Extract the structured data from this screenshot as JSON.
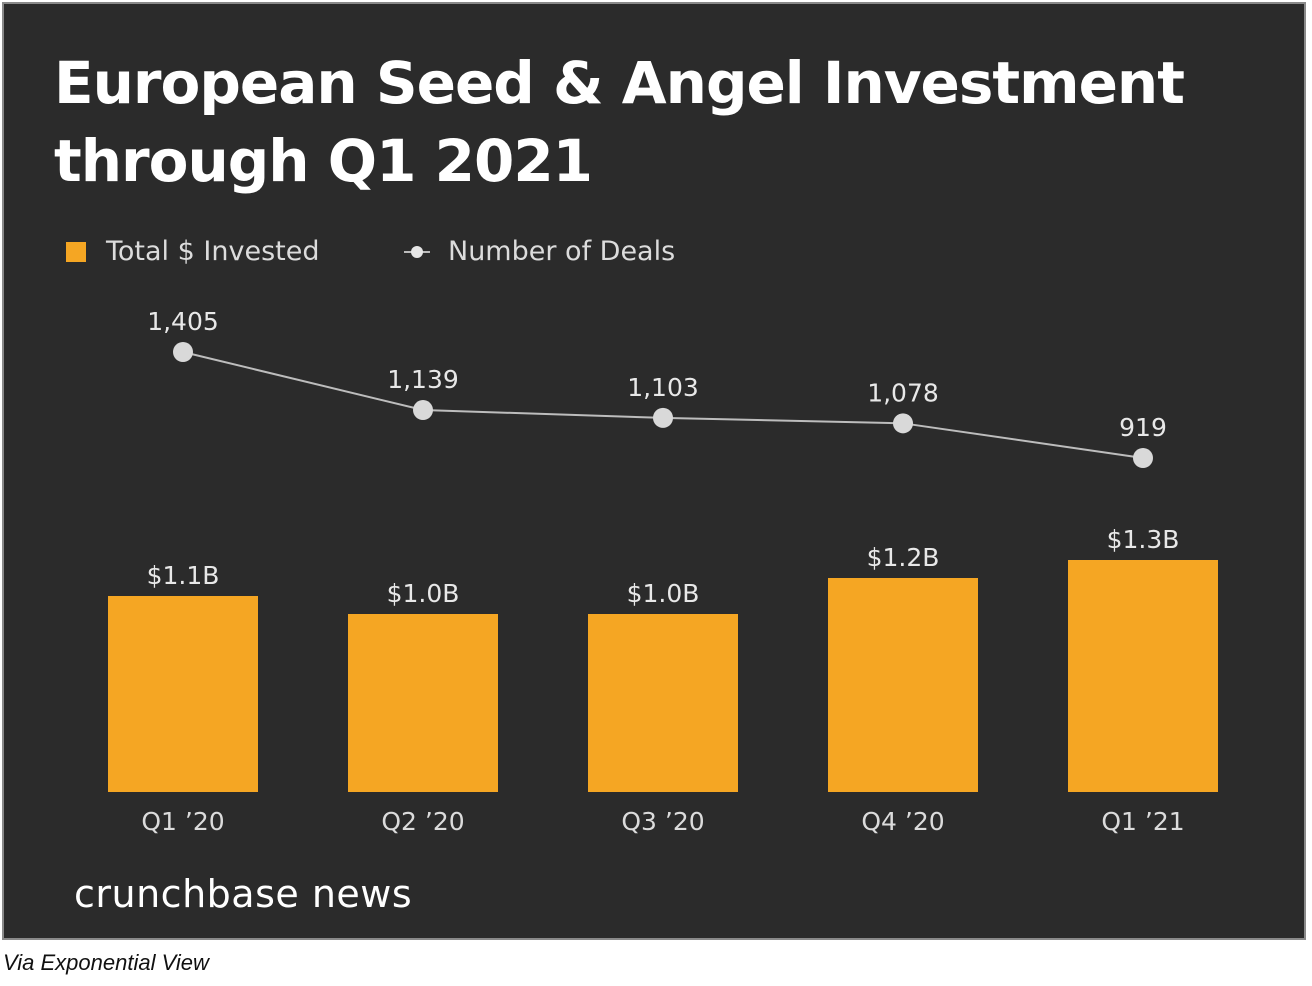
{
  "chart_data": {
    "type": "bar",
    "title": "European Seed & Angel Investment through Q1 2021",
    "categories": [
      "Q1 ’20",
      "Q2 ’20",
      "Q3 ’20",
      "Q4 ’20",
      "Q1 ’21"
    ],
    "series": [
      {
        "name": "Total $ Invested",
        "type": "bar",
        "values": [
          1.1,
          1.0,
          1.0,
          1.2,
          1.3
        ],
        "labels": [
          "$1.1B",
          "$1.0B",
          "$1.0B",
          "$1.2B",
          "$1.3B"
        ],
        "color": "#f5a623"
      },
      {
        "name": "Number of Deals",
        "type": "line",
        "values": [
          1405,
          1139,
          1103,
          1078,
          919
        ],
        "labels": [
          "1,405",
          "1,139",
          "1,103",
          "1,078",
          "919"
        ],
        "color": "#d9d9d9"
      }
    ],
    "legend_position": "top-left",
    "grid": false
  },
  "brand": "crunchbase news",
  "caption": "Via Exponential View",
  "colors": {
    "background": "#2b2b2b",
    "bar": "#f5a623",
    "line": "#d9d9d9",
    "text": "#ffffff"
  }
}
